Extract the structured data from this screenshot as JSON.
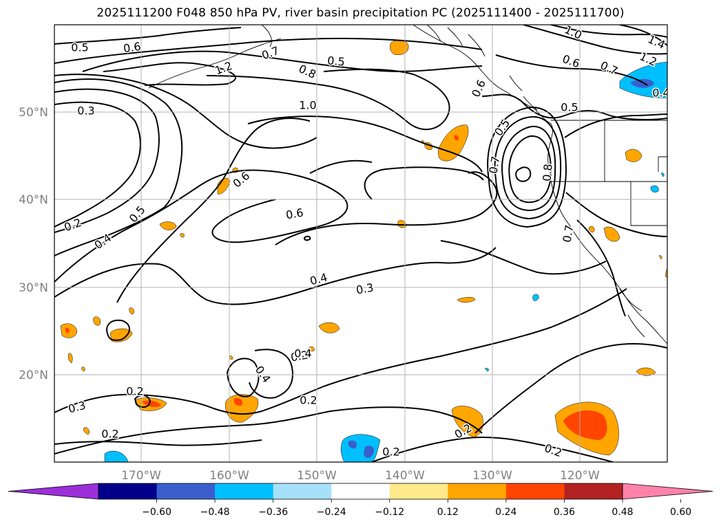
{
  "title": "2025111200 F048 850 hPa PV, river basin precipitation PC (2025111400 - 2025111700)",
  "latitude_labels": [
    "50°N",
    "40°N",
    "30°N",
    "20°N"
  ],
  "longitude_labels": [
    "170°W",
    "160°W",
    "150°W",
    "140°W",
    "130°W",
    "120°W"
  ],
  "colorbar": {
    "tick_labels": [
      "−0.60",
      "−0.48",
      "−0.36",
      "−0.24",
      "−0.12",
      "0.12",
      "0.24",
      "0.36",
      "0.48",
      "0.60"
    ],
    "colors": [
      "#9b30d9",
      "#00008b",
      "#3a5fcd",
      "#00bfff",
      "#a6e1fa",
      "#ffffff",
      "#ffe98a",
      "#ffa500",
      "#ff4500",
      "#b22222",
      "#ff82ab"
    ]
  },
  "contour_labels": [
    "0.5",
    "0.6",
    "1.2",
    "0.7",
    "0.8",
    "0.5",
    "1.0",
    "0.6",
    "0.7",
    "1.2",
    "1.4",
    "0.4",
    "1.0",
    "0.3",
    "0.6",
    "0.5",
    "0.4",
    "0.2",
    "0.6",
    "0.4",
    "0.3",
    "0.2",
    "0.4",
    "0.2",
    "0.3",
    "0.2",
    "0.2",
    "0.2",
    "0.2",
    "0.2",
    "0.5",
    "0.7",
    "0.8",
    "0.7",
    "0.5",
    "0.6",
    "0.4"
  ]
}
